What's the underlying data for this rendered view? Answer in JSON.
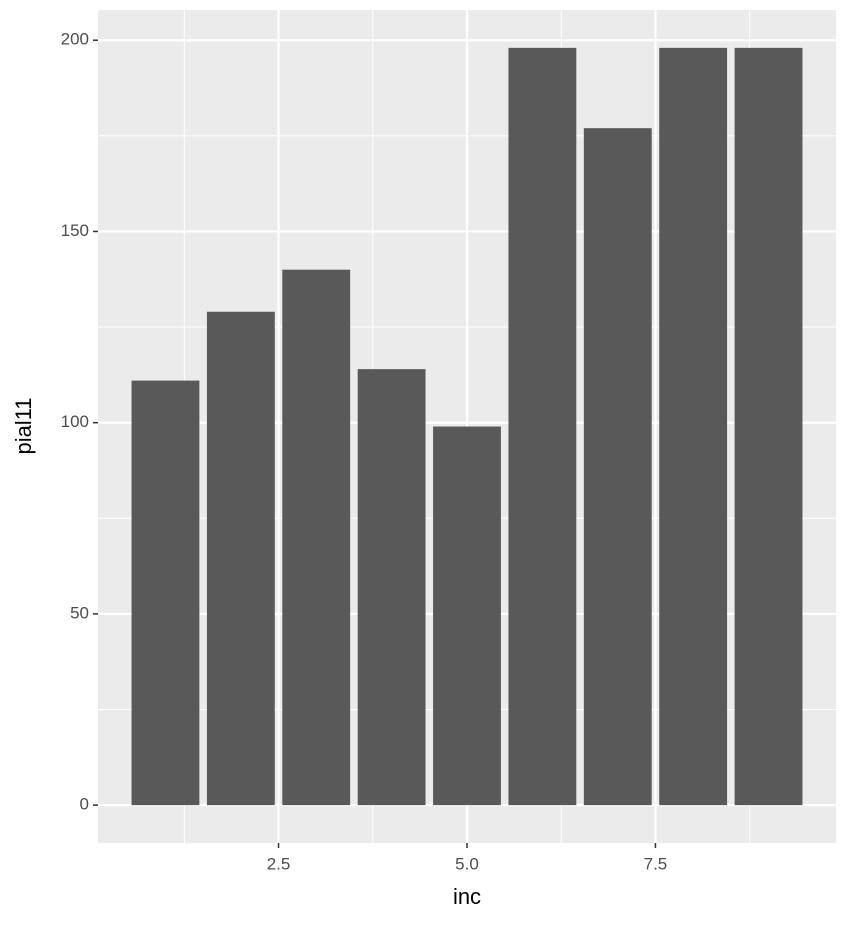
{
  "chart_data": {
    "type": "bar",
    "x_label": "inc",
    "y_label": "pial11",
    "x": [
      1,
      2,
      3,
      4,
      5,
      6,
      7,
      8,
      9
    ],
    "values": [
      111,
      129,
      140,
      114,
      99,
      198,
      177,
      198,
      198
    ],
    "color": "#595959",
    "xlim": [
      0.105,
      9.895
    ],
    "ylim": [
      -9.9,
      207.9
    ],
    "xticks": [
      2.5,
      {
        "value": 5,
        "label": "5.0"
      },
      7.5
    ],
    "yticks": [
      0,
      50,
      100,
      150,
      200
    ],
    "minor_xticks": [
      1.25,
      3.75,
      6.25,
      8.75
    ],
    "minor_yticks": [
      25,
      75,
      125,
      175
    ],
    "grid": true
  }
}
